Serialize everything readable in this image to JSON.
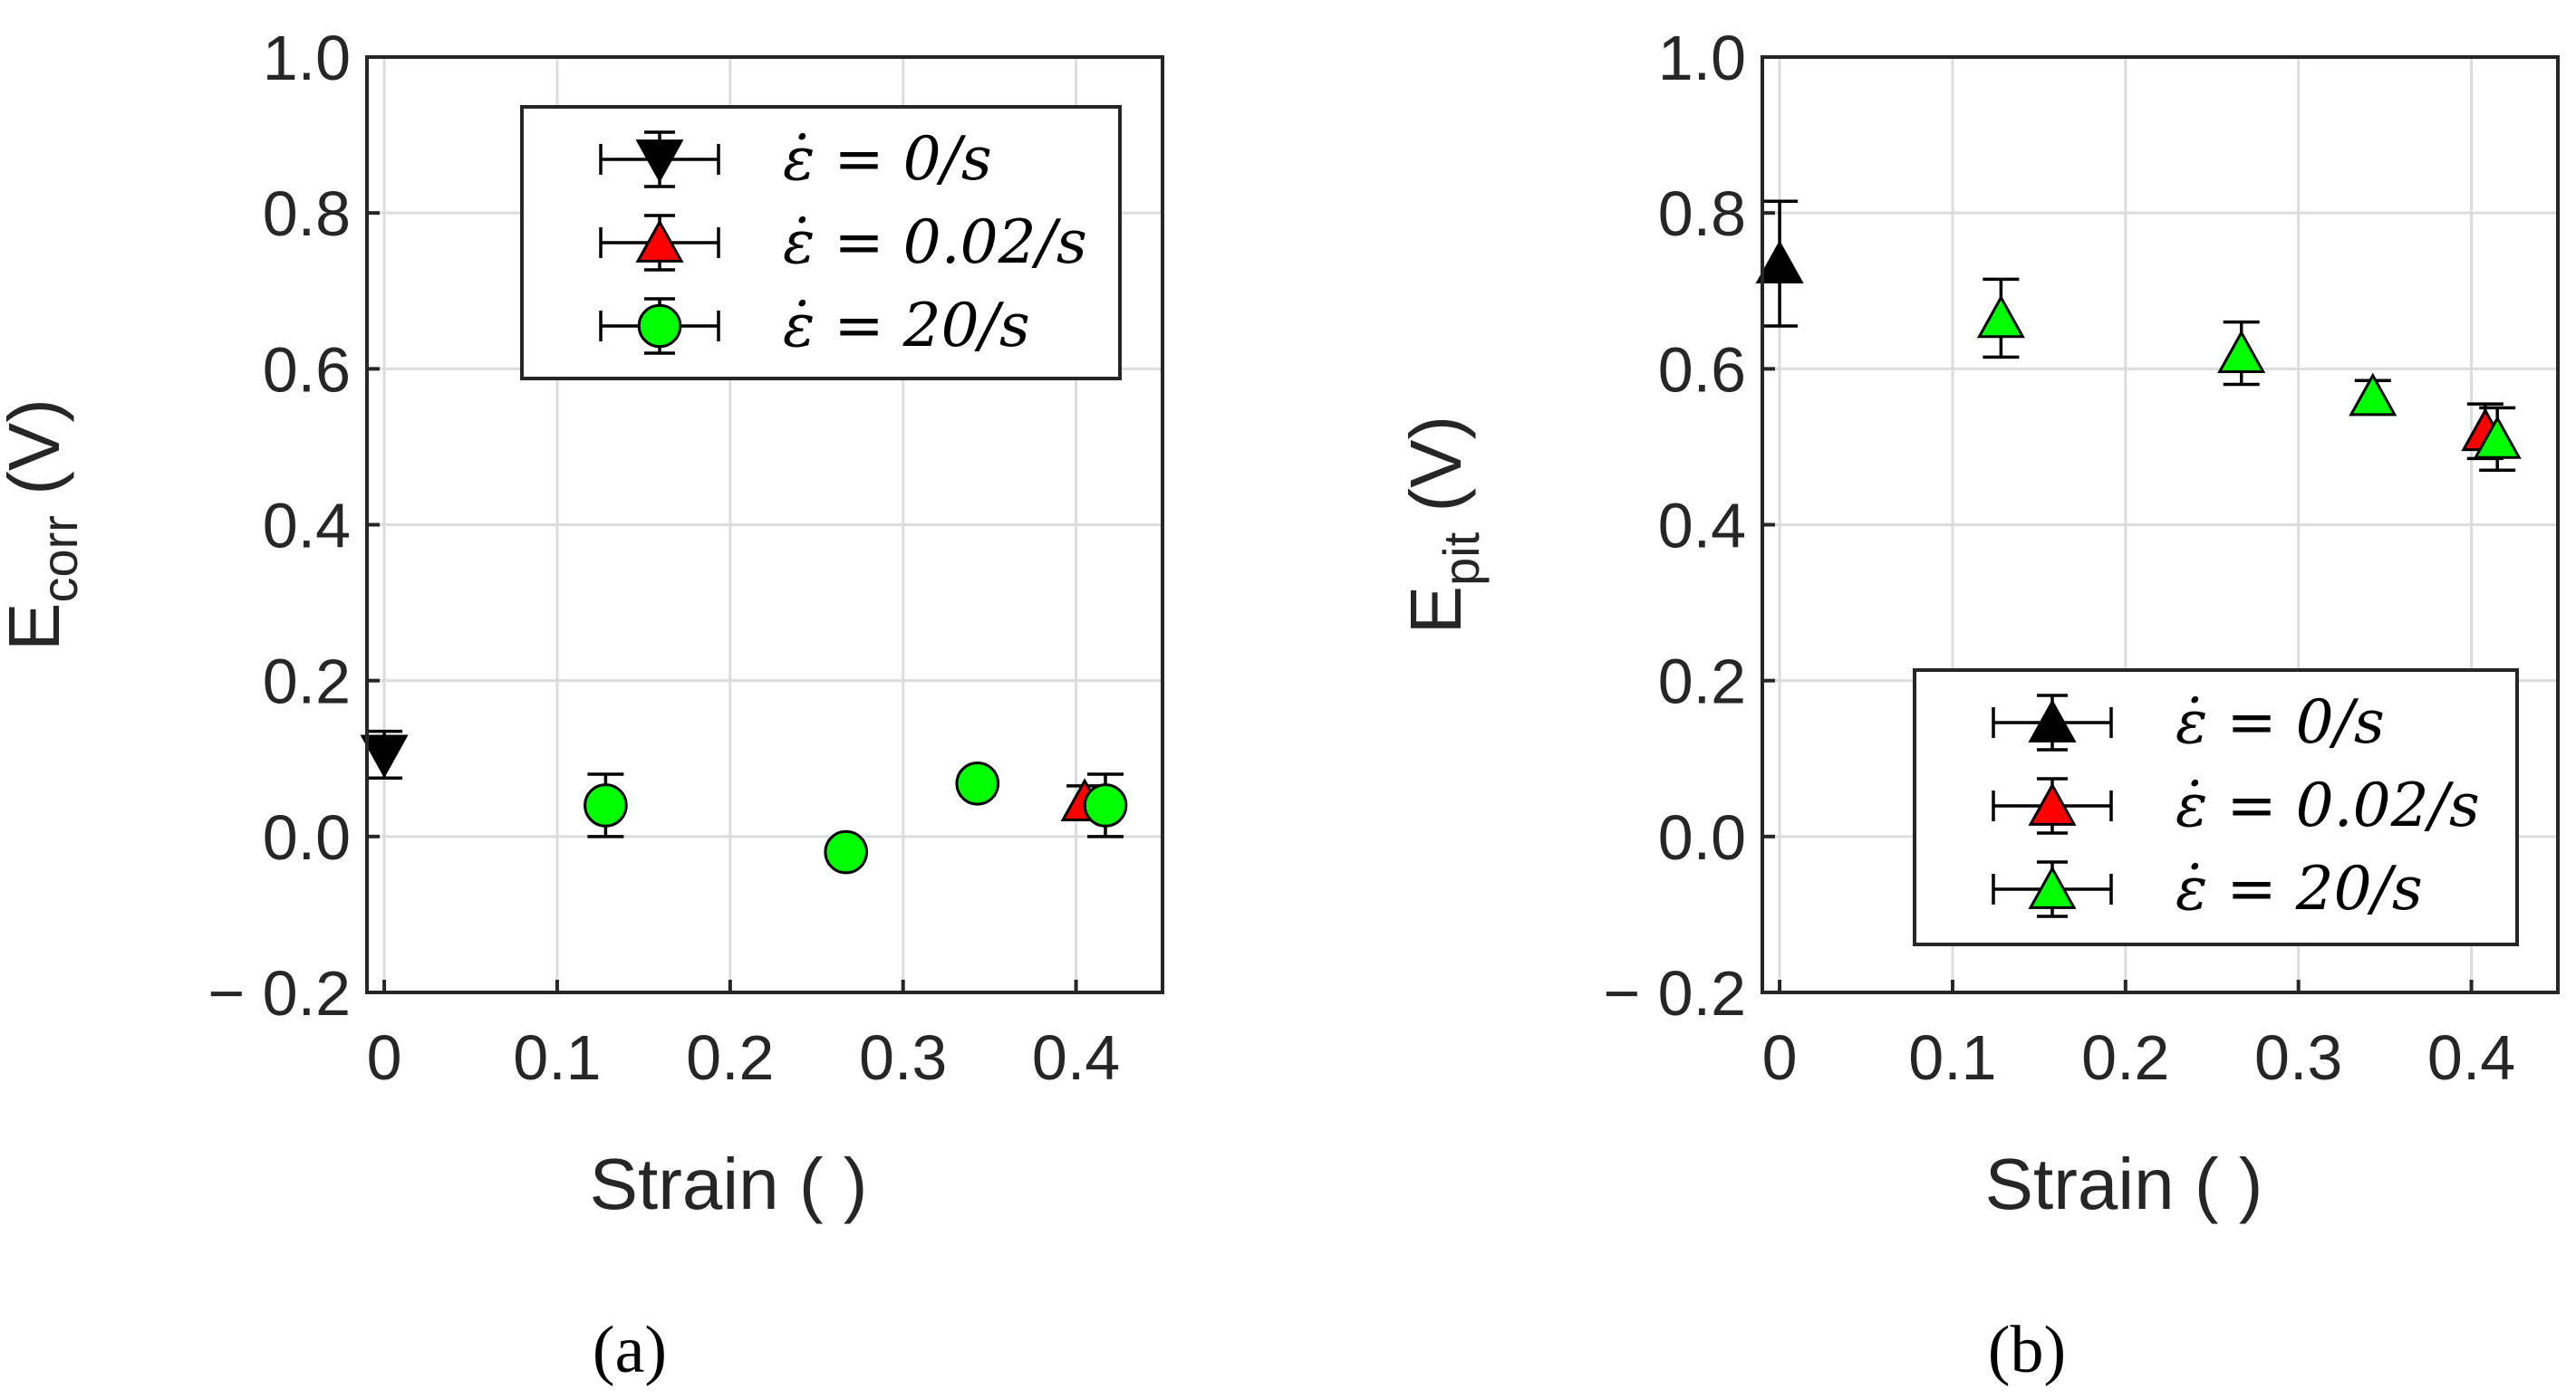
{
  "figure": {
    "panels": [
      {
        "id": "a",
        "panel_label": "(a)",
        "ylabel_main": "E",
        "ylabel_sub": "corr",
        "ylabel_unit": " (V)",
        "xlabel": "Strain ( )",
        "legend_position": "top-right"
      },
      {
        "id": "b",
        "panel_label": "(b)",
        "ylabel_main": "E",
        "ylabel_sub": "pit",
        "ylabel_unit": " (V)",
        "xlabel": "Strain ( )",
        "legend_position": "bottom-right"
      }
    ]
  },
  "chart_data": [
    {
      "type": "scatter",
      "xlabel": "Strain ( )",
      "ylabel": "E_corr (V)",
      "xlim": [
        -0.01,
        0.45
      ],
      "ylim": [
        -0.2,
        1.0
      ],
      "x_ticks": [
        "0",
        "0.1",
        "0.2",
        "0.3",
        "0.4"
      ],
      "y_ticks": [
        "− 0.2",
        "0.0",
        "0.2",
        "0.4",
        "0.6",
        "0.8",
        "1.0"
      ],
      "grid": true,
      "legend_position": "top-right",
      "series": [
        {
          "name": "ε̇ = 0/s",
          "marker": "triangle-down",
          "color": "#000000",
          "points": [
            {
              "x": 0.0,
              "y": 0.105,
              "yerr": 0.03,
              "xerr": 0.0
            }
          ]
        },
        {
          "name": "ε̇ = 0.02/s",
          "marker": "triangle-up",
          "color": "#ff0000",
          "points": [
            {
              "x": 0.405,
              "y": 0.045,
              "yerr": 0.02,
              "xerr": 0.0
            }
          ]
        },
        {
          "name": "ε̇ = 20/s",
          "marker": "circle",
          "color": "#00ff00",
          "points": [
            {
              "x": 0.128,
              "y": 0.04,
              "yerr": 0.04,
              "xerr": 0.0
            },
            {
              "x": 0.267,
              "y": -0.02,
              "yerr": 0.015,
              "xerr": 0.0
            },
            {
              "x": 0.343,
              "y": 0.068,
              "yerr": 0.015,
              "xerr": 0.0
            },
            {
              "x": 0.417,
              "y": 0.04,
              "yerr": 0.04,
              "xerr": 0.0
            }
          ]
        }
      ]
    },
    {
      "type": "scatter",
      "xlabel": "Strain ( )",
      "ylabel": "E_pit (V)",
      "xlim": [
        -0.01,
        0.45
      ],
      "ylim": [
        -0.2,
        1.0
      ],
      "x_ticks": [
        "0",
        "0.1",
        "0.2",
        "0.3",
        "0.4"
      ],
      "y_ticks": [
        "− 0.2",
        "0.0",
        "0.2",
        "0.4",
        "0.6",
        "0.8",
        "1.0"
      ],
      "grid": true,
      "legend_position": "bottom-right",
      "series": [
        {
          "name": "ε̇ = 0/s",
          "marker": "triangle-up",
          "color": "#000000",
          "points": [
            {
              "x": 0.0,
              "y": 0.735,
              "yerr": 0.08,
              "xerr": 0.0
            }
          ]
        },
        {
          "name": "ε̇ = 0.02/s",
          "marker": "triangle-up",
          "color": "#ff0000",
          "points": [
            {
              "x": 0.408,
              "y": 0.52,
              "yerr": 0.035,
              "xerr": 0.0
            }
          ]
        },
        {
          "name": "ε̇ = 20/s",
          "marker": "triangle-up",
          "color": "#00ff00",
          "points": [
            {
              "x": 0.128,
              "y": 0.665,
              "yerr": 0.05,
              "xerr": 0.0
            },
            {
              "x": 0.267,
              "y": 0.62,
              "yerr": 0.04,
              "xerr": 0.0
            },
            {
              "x": 0.343,
              "y": 0.565,
              "yerr": 0.02,
              "xerr": 0.0
            },
            {
              "x": 0.415,
              "y": 0.51,
              "yerr": 0.04,
              "xerr": 0.0
            }
          ]
        }
      ]
    }
  ]
}
